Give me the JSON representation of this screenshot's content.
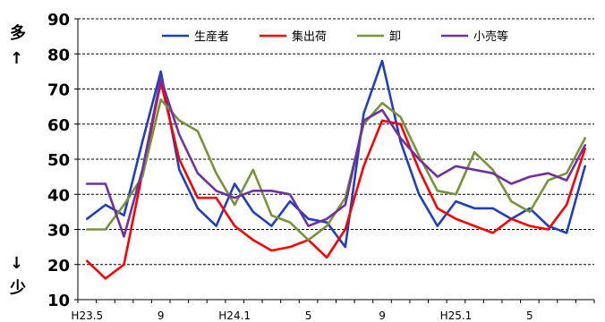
{
  "chart_data": {
    "type": "line",
    "title": "",
    "x": [
      "H23.5",
      "6",
      "7",
      "8",
      "9",
      "10",
      "11",
      "12",
      "H24.1",
      "2",
      "3",
      "4",
      "5",
      "6",
      "7",
      "8",
      "9",
      "10",
      "11",
      "12",
      "H25.1",
      "2",
      "3",
      "4",
      "5",
      "6",
      "7",
      "8"
    ],
    "x_tick_labels": [
      {
        "index": 0,
        "label": "H23.5"
      },
      {
        "index": 4,
        "label": "9"
      },
      {
        "index": 8,
        "label": "H24.1"
      },
      {
        "index": 12,
        "label": "5"
      },
      {
        "index": 16,
        "label": "9"
      },
      {
        "index": 20,
        "label": "H25.1"
      },
      {
        "index": 24,
        "label": "5"
      }
    ],
    "ylim": [
      10,
      90
    ],
    "yticks": [
      10,
      20,
      30,
      40,
      50,
      60,
      70,
      80,
      90
    ],
    "grid": true,
    "legend_position": "top",
    "y_axis_top_label": "多",
    "y_axis_top_arrow": "↑",
    "y_axis_bottom_arrow": "↓",
    "y_axis_bottom_label": "少",
    "series": [
      {
        "name": "生産者",
        "color": "#1f3fbf",
        "values": [
          33,
          37,
          34,
          55,
          75,
          47,
          36,
          31,
          43,
          35,
          31,
          38,
          33,
          32,
          25,
          63,
          78,
          55,
          40,
          31,
          38,
          36,
          36,
          33,
          36,
          31,
          29,
          48
        ]
      },
      {
        "name": "集出荷",
        "color": "#ff0000",
        "values": [
          21,
          16,
          20,
          46,
          72,
          50,
          39,
          39,
          31,
          27,
          24,
          25,
          27,
          22,
          30,
          48,
          61,
          60,
          47,
          36,
          33,
          31,
          29,
          33,
          31,
          30,
          37,
          53
        ]
      },
      {
        "name": "卸",
        "color": "#77933c",
        "values": [
          30,
          30,
          37,
          45,
          67,
          61,
          58,
          46,
          37,
          47,
          34,
          32,
          27,
          31,
          39,
          60,
          66,
          62,
          51,
          41,
          40,
          52,
          47,
          38,
          35,
          44,
          46,
          56
        ]
      },
      {
        "name": "小売等",
        "color": "#7030a0",
        "values": [
          43,
          43,
          28,
          47,
          73,
          57,
          46,
          41,
          39,
          41,
          41,
          40,
          31,
          33,
          37,
          61,
          64,
          56,
          50,
          45,
          48,
          47,
          46,
          43,
          45,
          46,
          44,
          54
        ]
      }
    ]
  }
}
